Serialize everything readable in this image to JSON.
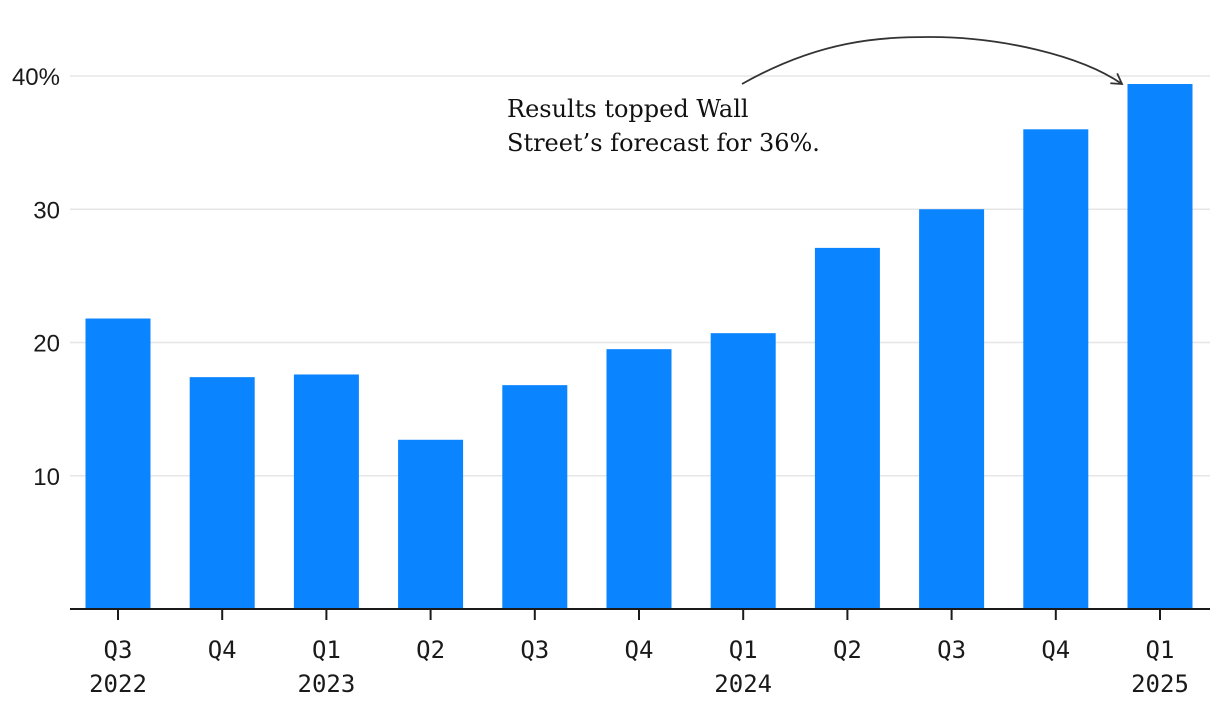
{
  "chart_data": {
    "type": "bar",
    "categories": [
      "Q3",
      "Q4",
      "Q1",
      "Q2",
      "Q3",
      "Q4",
      "Q1",
      "Q2",
      "Q3",
      "Q4",
      "Q1"
    ],
    "category_years": [
      "2022",
      "",
      "2023",
      "",
      "",
      "",
      "2024",
      "",
      "",
      "",
      "2025"
    ],
    "values": [
      21.8,
      17.4,
      17.6,
      12.7,
      16.8,
      19.5,
      20.7,
      27.1,
      30.0,
      36.0,
      39.4
    ],
    "ylim": [
      0,
      40
    ],
    "yticks": [
      {
        "value": 10,
        "label": "10"
      },
      {
        "value": 20,
        "label": "20"
      },
      {
        "value": 30,
        "label": "30"
      },
      {
        "value": 40,
        "label": "40%"
      }
    ],
    "grid": true,
    "colors": {
      "bar": "#0a84ff",
      "grid": "#e6e6e6",
      "axis": "#1a1a1a",
      "text": "#1a1a1a"
    },
    "annotation": {
      "lines": [
        "Results topped Wall",
        "Street’s forecast for 36%."
      ],
      "target_index": 10
    }
  }
}
